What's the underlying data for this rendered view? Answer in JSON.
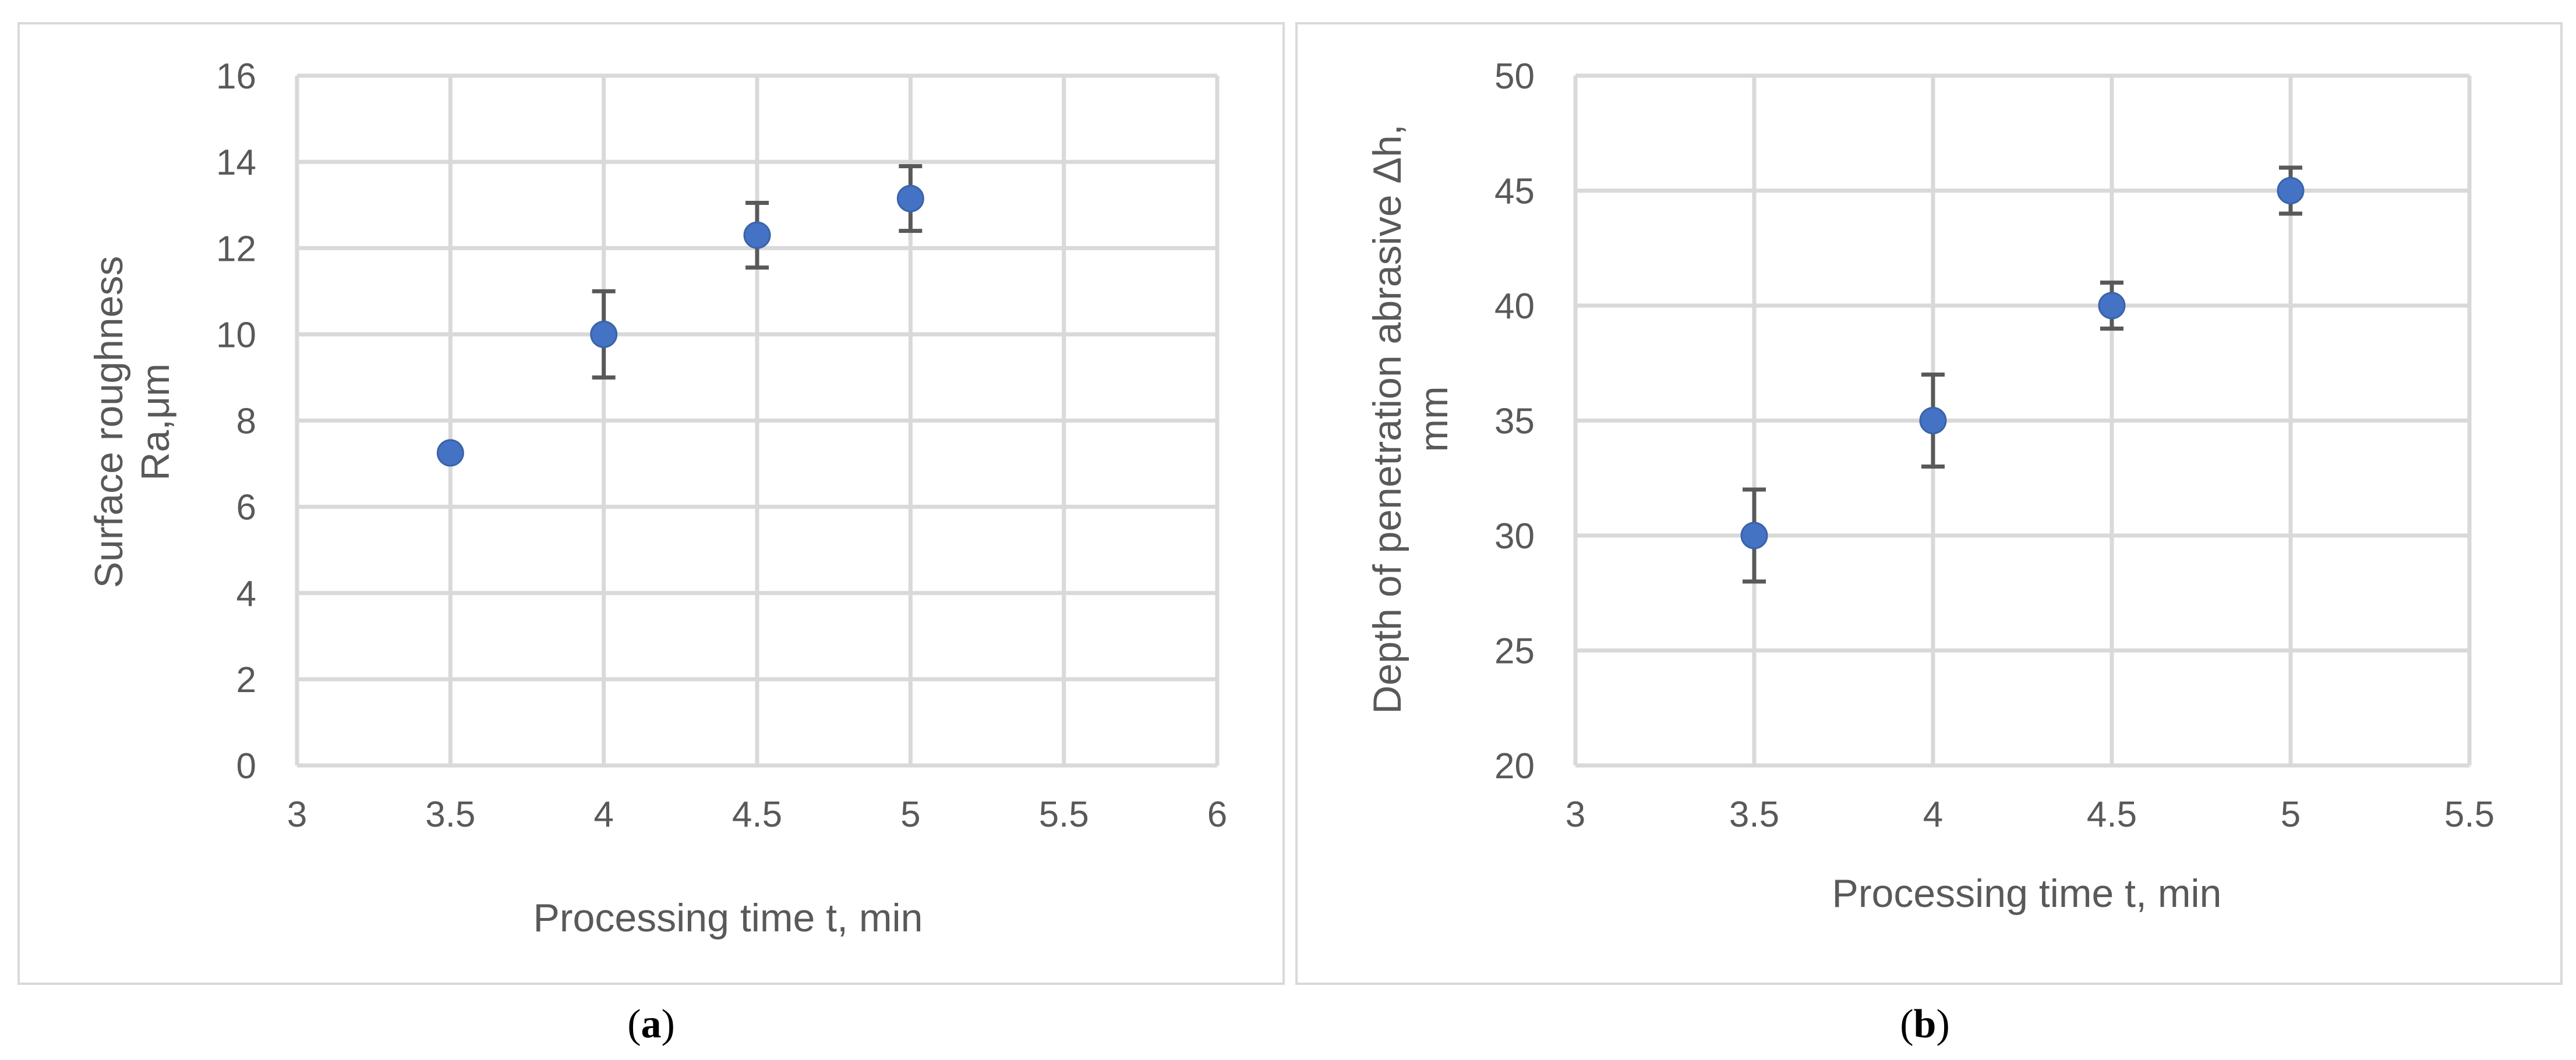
{
  "chart_data": [
    {
      "type": "scatter",
      "xlabel": "Processing time t, min",
      "ylabel_lines": [
        "Surface roughness",
        "Ra,μm"
      ],
      "xlim": [
        3,
        6
      ],
      "ylim": [
        0,
        16
      ],
      "xticks": [
        "3",
        "3.5",
        "4",
        "4.5",
        "5",
        "5.5",
        "6"
      ],
      "yticks": [
        "0",
        "2",
        "4",
        "6",
        "8",
        "10",
        "12",
        "14",
        "16"
      ],
      "points": [
        {
          "x": 3.5,
          "y": 7.25,
          "err": 0
        },
        {
          "x": 4.0,
          "y": 10.0,
          "err": 1.0
        },
        {
          "x": 4.5,
          "y": 12.3,
          "err": 0.75
        },
        {
          "x": 5.0,
          "y": 13.15,
          "err": 0.75
        }
      ],
      "marker_color": "#4472c4",
      "grid": true,
      "caption_open": "(",
      "caption_letter": "a",
      "caption_close": ")"
    },
    {
      "type": "scatter",
      "xlabel": "Processing time t, min",
      "ylabel_lines": [
        "Depth of penetration abrasive Δh,",
        "mm"
      ],
      "xlim": [
        3,
        5.5
      ],
      "ylim": [
        20,
        50
      ],
      "xticks": [
        "3",
        "3.5",
        "4",
        "4.5",
        "5",
        "5.5"
      ],
      "yticks": [
        "20",
        "25",
        "30",
        "35",
        "40",
        "45",
        "50"
      ],
      "points": [
        {
          "x": 3.5,
          "y": 30,
          "err": 2
        },
        {
          "x": 4.0,
          "y": 35,
          "err": 2
        },
        {
          "x": 4.5,
          "y": 40,
          "err": 1
        },
        {
          "x": 5.0,
          "y": 45,
          "err": 1
        }
      ],
      "marker_color": "#4472c4",
      "grid": true,
      "caption_open": "(",
      "caption_letter": "b",
      "caption_close": ")"
    }
  ]
}
